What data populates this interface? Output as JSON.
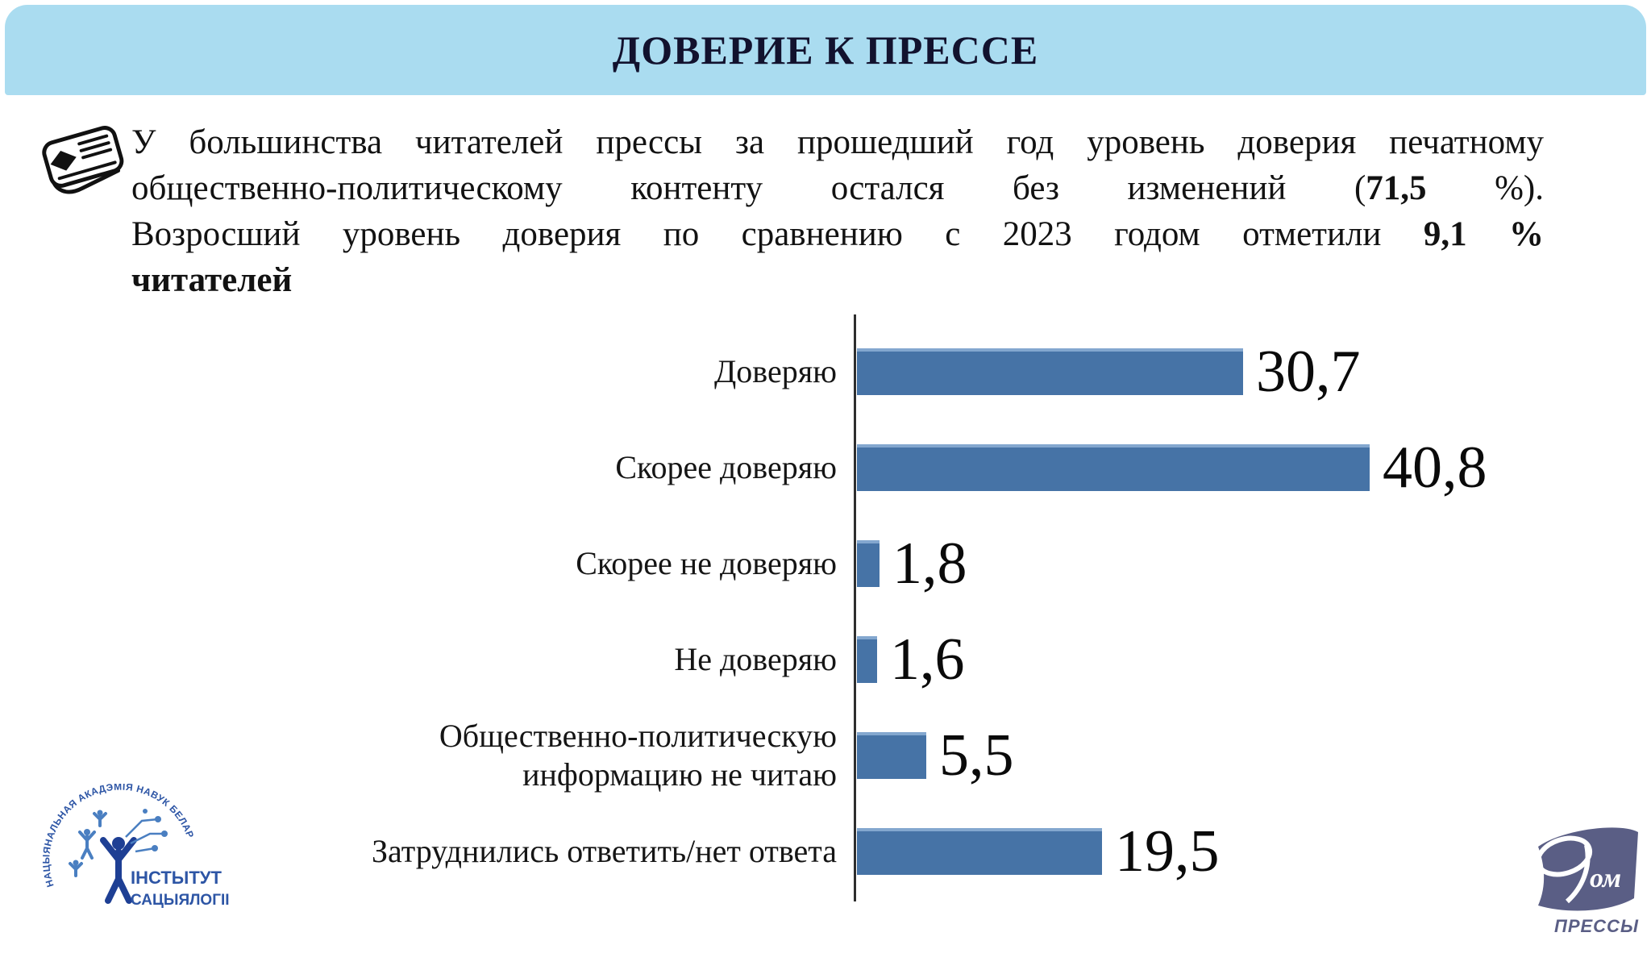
{
  "header": {
    "title": "ДОВЕРИЕ К ПРЕССЕ",
    "band_color": "#aadcf0"
  },
  "summary": {
    "lines": [
      {
        "segments": [
          {
            "text": "У большинства читателей прессы за прошедший год уровень доверия печатному",
            "bold": false
          }
        ]
      },
      {
        "segments": [
          {
            "text": "общественно-политическому контенту остался без изменений (",
            "bold": false
          },
          {
            "text": "71,5",
            "bold": true
          },
          {
            "text": " %).",
            "bold": false
          }
        ]
      },
      {
        "segments": [
          {
            "text": "Возросший уровень доверия по сравнению с 2023 годом отметили ",
            "bold": false
          },
          {
            "text": "9,1 %",
            "bold": true
          }
        ]
      },
      {
        "segments": [
          {
            "text": "читателей",
            "bold": true
          }
        ]
      }
    ]
  },
  "chart_data": {
    "type": "bar",
    "orientation": "horizontal",
    "title": "ДОВЕРИЕ К ПРЕССЕ",
    "categories": [
      "Доверяю",
      "Скорее доверяю",
      "Скорее не доверяю",
      "Не доверяю",
      "Общественно-политическую информацию не читаю",
      "Затруднились ответить/нет ответа"
    ],
    "values": [
      30.7,
      40.8,
      1.8,
      1.6,
      5.5,
      19.5
    ],
    "value_labels": [
      "30,7",
      "40,8",
      "1,8",
      "1,6",
      "5,5",
      "19,5"
    ],
    "unit": "percent",
    "xlim": [
      0,
      45
    ],
    "grid": false,
    "legend": false,
    "bar_color": "#4673a6",
    "axis_color": "#2e2e2e"
  },
  "chart": {
    "rows": [
      {
        "label": "Доверяю",
        "value": 30.7,
        "value_label": "30,7"
      },
      {
        "label": "Скорее доверяю",
        "value": 40.8,
        "value_label": "40,8"
      },
      {
        "label": "Скорее не доверяю",
        "value": 1.8,
        "value_label": "1,8"
      },
      {
        "label": "Не доверяю",
        "value": 1.6,
        "value_label": "1,6"
      },
      {
        "label": "Общественно-политическую\nинформацию не читаю",
        "value": 5.5,
        "value_label": "5,5"
      },
      {
        "label": "Затруднились ответить/нет ответа",
        "value": 19.5,
        "value_label": "19,5"
      }
    ]
  },
  "logos": {
    "institute": {
      "arc_text": "НАЦЫЯНАЛЬНАЯ АКАДЭМІЯ НАВУК БЕЛАРУСІ",
      "name_line1": "ІНСТЫТУТ",
      "name_line2": "САЦЫЯЛОГІІ",
      "color": "#2d55a5"
    },
    "press_house": {
      "om_text": "ом",
      "caption": "ПРЕССЫ",
      "color": "#5a5e85"
    }
  }
}
